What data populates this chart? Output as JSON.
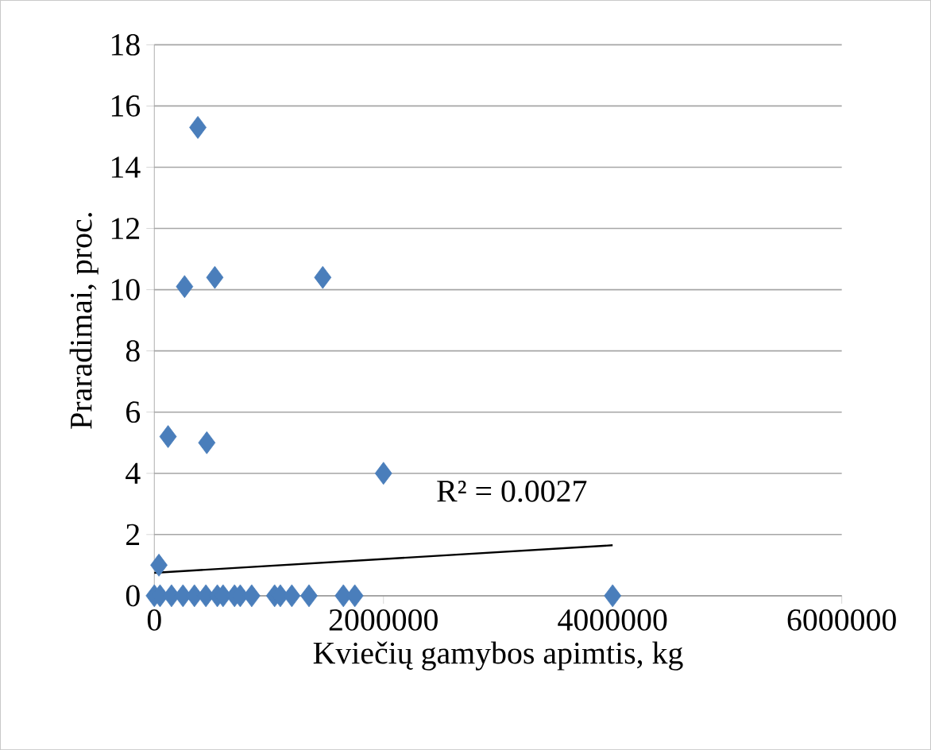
{
  "chart_data": {
    "type": "scatter",
    "xlabel": "Kviečių gamybos apimtis, kg",
    "ylabel": "Praradimai, proc.",
    "xlim": [
      0,
      6000000
    ],
    "xticks": [
      0,
      2000000,
      4000000,
      6000000
    ],
    "ylim": [
      0,
      18
    ],
    "yticks": [
      0,
      2,
      4,
      6,
      8,
      10,
      12,
      14,
      16,
      18
    ],
    "grid": "y",
    "annotations": [
      "R² = 0.0027"
    ],
    "series": [
      {
        "marker": "diamond",
        "color": "#4a7ebb",
        "x": [
          380000,
          264000,
          528000,
          1470000,
          120000,
          458000,
          2000000,
          40000,
          0,
          50000,
          150000,
          250000,
          350000,
          450000,
          550000,
          600000,
          700000,
          750000,
          850000,
          1050000,
          1100000,
          1200000,
          1350000,
          1650000,
          1750000,
          4000000
        ],
        "values": [
          15.3,
          10.1,
          10.4,
          10.4,
          5.2,
          5.0,
          4.0,
          1.0,
          0,
          0,
          0,
          0,
          0,
          0,
          0,
          0,
          0,
          0,
          0,
          0,
          0,
          0,
          0,
          0,
          0,
          0
        ]
      },
      {
        "type": "line",
        "marker": "none",
        "color": "#000000",
        "x": [
          0,
          4000000
        ],
        "values": [
          0.75,
          1.65
        ]
      }
    ]
  }
}
